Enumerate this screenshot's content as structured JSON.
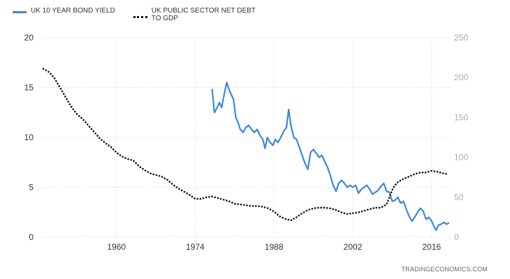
{
  "legend": {
    "items": [
      {
        "label": "UK 10 YEAR BOND YIELD",
        "color": "#3c87dc",
        "style": "solid"
      },
      {
        "label": "UK PUBLIC SECTOR NET DEBT\nTO GDP",
        "color": "#111111",
        "style": "dotted"
      }
    ]
  },
  "source": "TRADINGECONOMICS.COM",
  "chart_data": {
    "type": "line",
    "title": "",
    "xlabel": "",
    "ylabel": "",
    "xlim": [
      1947,
      2019.5
    ],
    "x_ticks": [
      1960,
      1974,
      1988,
      2002,
      2016
    ],
    "y_left": {
      "range": [
        0,
        20
      ],
      "ticks": [
        0,
        5,
        10,
        15,
        20
      ]
    },
    "y_right": {
      "range": [
        0,
        250
      ],
      "ticks": [
        0,
        50,
        100,
        150,
        200,
        250
      ]
    },
    "grid": true,
    "legend_position": "top-left",
    "series": [
      {
        "name": "UK 10 YEAR BOND YIELD",
        "axis": "left",
        "color": "#3c87dc",
        "points": [
          [
            1977.0,
            14.8
          ],
          [
            1977.4,
            12.5
          ],
          [
            1977.9,
            13.0
          ],
          [
            1978.3,
            13.5
          ],
          [
            1978.7,
            13.0
          ],
          [
            1979.2,
            14.5
          ],
          [
            1979.6,
            15.5
          ],
          [
            1980.0,
            14.8
          ],
          [
            1980.4,
            14.3
          ],
          [
            1980.8,
            13.8
          ],
          [
            1981.2,
            12.0
          ],
          [
            1981.6,
            11.5
          ],
          [
            1982.0,
            10.8
          ],
          [
            1982.5,
            10.5
          ],
          [
            1983.0,
            11.0
          ],
          [
            1983.5,
            11.2
          ],
          [
            1984.0,
            10.8
          ],
          [
            1984.5,
            10.5
          ],
          [
            1985.0,
            10.8
          ],
          [
            1985.5,
            10.2
          ],
          [
            1986.0,
            9.8
          ],
          [
            1986.4,
            8.9
          ],
          [
            1986.8,
            10.0
          ],
          [
            1987.3,
            9.5
          ],
          [
            1987.8,
            9.2
          ],
          [
            1988.2,
            9.8
          ],
          [
            1988.7,
            9.5
          ],
          [
            1989.2,
            10.0
          ],
          [
            1989.7,
            10.6
          ],
          [
            1990.2,
            11.0
          ],
          [
            1990.6,
            12.8
          ],
          [
            1991.0,
            11.2
          ],
          [
            1991.5,
            10.0
          ],
          [
            1992.0,
            9.8
          ],
          [
            1992.5,
            9.0
          ],
          [
            1993.0,
            8.2
          ],
          [
            1993.5,
            7.4
          ],
          [
            1994.0,
            6.8
          ],
          [
            1994.5,
            8.5
          ],
          [
            1995.0,
            8.8
          ],
          [
            1995.5,
            8.4
          ],
          [
            1996.0,
            8.0
          ],
          [
            1996.5,
            8.2
          ],
          [
            1997.0,
            7.6
          ],
          [
            1997.5,
            7.0
          ],
          [
            1998.0,
            6.2
          ],
          [
            1998.5,
            5.2
          ],
          [
            1999.0,
            4.6
          ],
          [
            1999.5,
            5.4
          ],
          [
            2000.0,
            5.7
          ],
          [
            2000.5,
            5.4
          ],
          [
            2001.0,
            5.0
          ],
          [
            2001.5,
            5.2
          ],
          [
            2002.0,
            5.0
          ],
          [
            2002.5,
            5.2
          ],
          [
            2003.0,
            4.4
          ],
          [
            2003.5,
            4.8
          ],
          [
            2004.0,
            5.0
          ],
          [
            2004.5,
            5.2
          ],
          [
            2005.0,
            4.8
          ],
          [
            2005.5,
            4.3
          ],
          [
            2006.0,
            4.5
          ],
          [
            2006.5,
            4.7
          ],
          [
            2007.0,
            5.1
          ],
          [
            2007.5,
            5.4
          ],
          [
            2008.0,
            4.6
          ],
          [
            2008.5,
            4.5
          ],
          [
            2009.0,
            3.6
          ],
          [
            2009.5,
            3.7
          ],
          [
            2010.0,
            4.0
          ],
          [
            2010.5,
            3.4
          ],
          [
            2011.0,
            3.6
          ],
          [
            2011.5,
            2.8
          ],
          [
            2012.0,
            2.1
          ],
          [
            2012.5,
            1.6
          ],
          [
            2013.0,
            2.0
          ],
          [
            2013.5,
            2.5
          ],
          [
            2014.0,
            2.9
          ],
          [
            2014.5,
            2.6
          ],
          [
            2015.0,
            1.8
          ],
          [
            2015.5,
            2.0
          ],
          [
            2016.0,
            1.6
          ],
          [
            2016.5,
            1.0
          ],
          [
            2016.8,
            0.7
          ],
          [
            2017.2,
            1.2
          ],
          [
            2017.7,
            1.3
          ],
          [
            2018.2,
            1.5
          ],
          [
            2018.6,
            1.3
          ],
          [
            2019.0,
            1.4
          ]
        ]
      },
      {
        "name": "UK PUBLIC SECTOR NET DEBT TO GDP",
        "axis": "right",
        "color": "#111111",
        "points": [
          [
            1947.0,
            211
          ],
          [
            1948.0,
            207
          ],
          [
            1949.0,
            199
          ],
          [
            1950.0,
            187
          ],
          [
            1951.0,
            175
          ],
          [
            1952.0,
            163
          ],
          [
            1953.0,
            154
          ],
          [
            1954.0,
            148
          ],
          [
            1955.0,
            140
          ],
          [
            1956.0,
            132
          ],
          [
            1957.0,
            124
          ],
          [
            1958.0,
            118
          ],
          [
            1959.0,
            113
          ],
          [
            1960.0,
            106
          ],
          [
            1961.0,
            101
          ],
          [
            1962.0,
            98
          ],
          [
            1963.0,
            96
          ],
          [
            1964.0,
            89
          ],
          [
            1965.0,
            84
          ],
          [
            1966.0,
            80
          ],
          [
            1967.0,
            78
          ],
          [
            1968.0,
            76
          ],
          [
            1969.0,
            72
          ],
          [
            1970.0,
            66
          ],
          [
            1971.0,
            61
          ],
          [
            1972.0,
            57
          ],
          [
            1973.0,
            53
          ],
          [
            1974.0,
            48
          ],
          [
            1975.0,
            48
          ],
          [
            1976.0,
            50
          ],
          [
            1977.0,
            51
          ],
          [
            1978.0,
            49
          ],
          [
            1979.0,
            47
          ],
          [
            1980.0,
            45
          ],
          [
            1981.0,
            42
          ],
          [
            1982.0,
            41
          ],
          [
            1983.0,
            40
          ],
          [
            1984.0,
            39
          ],
          [
            1985.0,
            39
          ],
          [
            1986.0,
            38
          ],
          [
            1987.0,
            36
          ],
          [
            1988.0,
            32
          ],
          [
            1989.0,
            26
          ],
          [
            1990.0,
            23
          ],
          [
            1991.0,
            21
          ],
          [
            1992.0,
            25
          ],
          [
            1993.0,
            30
          ],
          [
            1994.0,
            34
          ],
          [
            1995.0,
            36
          ],
          [
            1996.0,
            37
          ],
          [
            1997.0,
            37
          ],
          [
            1998.0,
            36
          ],
          [
            1999.0,
            34
          ],
          [
            2000.0,
            31
          ],
          [
            2001.0,
            29
          ],
          [
            2002.0,
            30
          ],
          [
            2003.0,
            31
          ],
          [
            2004.0,
            33
          ],
          [
            2005.0,
            35
          ],
          [
            2006.0,
            37
          ],
          [
            2007.0,
            37
          ],
          [
            2008.0,
            41
          ],
          [
            2008.5,
            50
          ],
          [
            2009.0,
            59
          ],
          [
            2009.5,
            65
          ],
          [
            2010.0,
            69
          ],
          [
            2011.0,
            73
          ],
          [
            2012.0,
            76
          ],
          [
            2013.0,
            79
          ],
          [
            2014.0,
            81
          ],
          [
            2015.0,
            81
          ],
          [
            2016.0,
            83
          ],
          [
            2017.0,
            82
          ],
          [
            2018.0,
            80
          ],
          [
            2019.0,
            79
          ]
        ]
      }
    ]
  }
}
